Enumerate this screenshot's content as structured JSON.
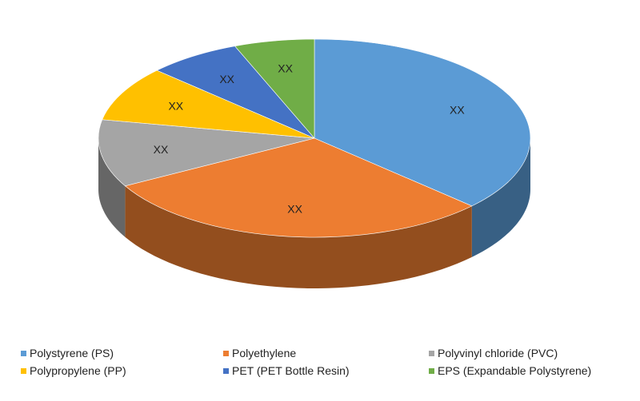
{
  "chart_data": {
    "type": "pie",
    "style": "3d",
    "data_labels": [
      "XX",
      "XX",
      "XX",
      "XX",
      "XX",
      "XX"
    ],
    "legend_position": "bottom",
    "series": [
      {
        "name": "Polystyrene (PS)",
        "value": 37,
        "color": "#5b9bd5"
      },
      {
        "name": "Polyethylene",
        "value": 30,
        "color": "#ed7d31"
      },
      {
        "name": "Polyvinyl chloride (PVC)",
        "value": 11,
        "color": "#a5a5a5"
      },
      {
        "name": "Polypropylene (PP)",
        "value": 9,
        "color": "#ffc000"
      },
      {
        "name": "PET (PET Bottle Resin)",
        "value": 7,
        "color": "#4472c4"
      },
      {
        "name": "EPS (Expandable Polystyrene)",
        "value": 6,
        "color": "#70ad47"
      }
    ]
  }
}
